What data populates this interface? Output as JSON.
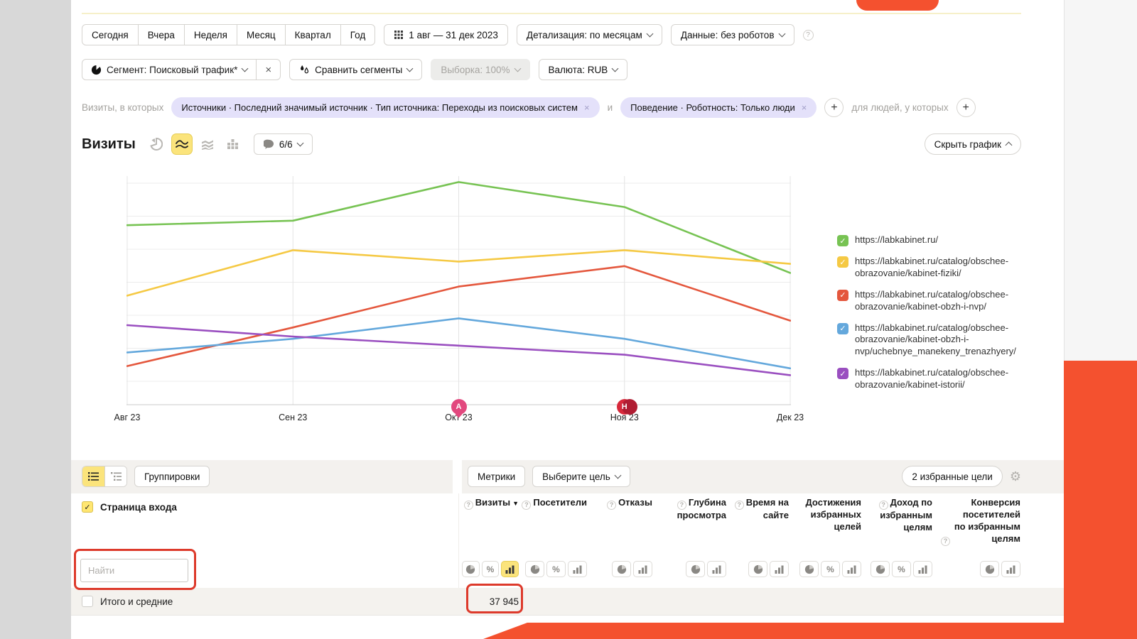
{
  "colors": {
    "accent_orange": "#f4512f",
    "selection_yellow": "#fbe47c",
    "chip_lavender": "#e4e1fa",
    "annotation_red": "#dd3a2b"
  },
  "header": {
    "date_tabs": [
      "Сегодня",
      "Вчера",
      "Неделя",
      "Месяц",
      "Квартал",
      "Год"
    ],
    "date_range": "1 авг — 31 дек 2023",
    "detalization": "Детализация: по месяцам",
    "data_mode": "Данные: без роботов",
    "segment": "Сегмент: Поисковый трафик*",
    "compare": "Сравнить сегменты",
    "sampling": "Выборка: 100%",
    "currency": "Валюта: RUB"
  },
  "filters": {
    "prefix": "Визиты, в которых",
    "chip_sources": "Источники · Последний значимый источник · Тип источника: Переходы из поисковых систем",
    "conjunction": "и",
    "chip_behavior": "Поведение · Роботность: Только люди",
    "suffix": "для людей, у которых"
  },
  "chart_header": {
    "title": "Визиты",
    "counter": "6/6",
    "hide_label": "Скрыть график"
  },
  "chart_data": {
    "type": "line",
    "title": "Визиты",
    "x_labels": [
      "Авг 23",
      "Сен 23",
      "Окт 23",
      "Ноя 23",
      "Дек 23"
    ],
    "y_axis": "unlabeled (relative scale 0-100)",
    "ylim": [
      0,
      100
    ],
    "grid": true,
    "legend_position": "right",
    "series": [
      {
        "name": "https://labkabinet.ru/",
        "color": "#77c353",
        "values": [
          79,
          81,
          98,
          87,
          58
        ]
      },
      {
        "name": "https://labkabinet.ru/catalog/obschee-obrazovanie/kabinet-fiziki/",
        "color": "#f5c944",
        "values": [
          48,
          68,
          63,
          68,
          62
        ]
      },
      {
        "name": "https://labkabinet.ru/catalog/obschee-obrazovanie/kabinet-obzh-i-nvp/",
        "color": "#e4573d",
        "values": [
          17,
          34,
          52,
          61,
          37
        ]
      },
      {
        "name": "https://labkabinet.ru/catalog/obschee-obrazovanie/kabinet-obzh-i-nvp/uchebnye_manekeny_trenazhyery/",
        "color": "#64a8dc",
        "values": [
          23,
          29,
          38,
          29,
          16
        ]
      },
      {
        "name": "https://labkabinet.ru/catalog/obschee-obrazovanie/kabinet-istorii/",
        "color": "#9a4fc0",
        "values": [
          35,
          30,
          26,
          22,
          13
        ]
      }
    ],
    "annotations": [
      {
        "label": "A",
        "x": "Окт 23",
        "color": "#e2487e",
        "style": "single-bubble"
      },
      {
        "label": "H",
        "x": "Ноя 23",
        "color": "#d7293b",
        "style": "double-circle"
      }
    ]
  },
  "table": {
    "groupings": "Группировки",
    "metrics": "Метрики",
    "choose_goal": "Выберите цель",
    "favorite_goals": "2 избранные цели",
    "dimension": "Страница входа",
    "search_placeholder": "Найти",
    "columns": [
      {
        "label": "Визиты",
        "help": true,
        "sort": "desc",
        "selectors": [
          "pie",
          "percent",
          "bar"
        ],
        "selected": "bar"
      },
      {
        "label": "Посетители",
        "help": true,
        "selectors": [
          "pie",
          "percent",
          "bar"
        ]
      },
      {
        "label": "Отказы",
        "help": true,
        "selectors": [
          "pie",
          "bar"
        ]
      },
      {
        "label": "Глубина просмотра",
        "help": true,
        "selectors": [
          "pie",
          "bar"
        ]
      },
      {
        "label": "Время на сайте",
        "help": true,
        "selectors": [
          "pie",
          "bar"
        ]
      },
      {
        "label": "Достижения избранных целей",
        "help": false,
        "selectors": [
          "pie",
          "percent",
          "bar"
        ]
      },
      {
        "label": "Доход по избранным целям",
        "help": true,
        "selectors": [
          "pie",
          "percent",
          "bar"
        ]
      },
      {
        "label": "Конверсия посетителей по избранным целям",
        "help": true,
        "selectors": [
          "pie",
          "bar"
        ]
      }
    ],
    "totals": {
      "label": "Итого и средние",
      "visits": "37 945"
    }
  }
}
